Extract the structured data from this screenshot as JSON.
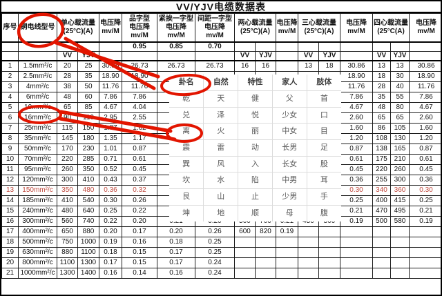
{
  "title": "VV/YJV电缆数据表",
  "colors": {
    "annotation_red": "#e21500",
    "highlight_row_red": "#c0493d",
    "table_border": "#1a1a1a"
  },
  "table": {
    "headers": {
      "seq": "序号",
      "type": "铜电线型号",
      "single": "单心载流量\n(25°C)(A)",
      "vdrop": "电压降\nmv/M",
      "trefoil": "品字型\n电压降\nmv/M",
      "flat_touching": "紧挨一字型\n电压降\nmv/M",
      "flat_spaced": "间距一字型\n电压降\nmv/M",
      "two_core": "两心载流量\n(25°C)(A)",
      "three_core": "三心载流量\n(25°C)(A)",
      "four_core": "四心载流量\n(25°C(A)",
      "vv": "VV",
      "yjv": "YJV",
      "factor_trefoil": "0.95",
      "factor_touching": "0.85",
      "factor_spaced": "0.70"
    },
    "red_row_seq": "13",
    "rows": [
      [
        "1",
        "1.5mm²/c",
        "20",
        "25",
        "30.86",
        "26.73",
        "26.73",
        "26.73",
        "16",
        "16",
        "",
        "13",
        "18",
        "30.86",
        "13",
        "13",
        "30.86"
      ],
      [
        "2",
        "2.5mm²/c",
        "28",
        "35",
        "18.90",
        "18.90",
        "",
        "",
        "",
        "",
        "",
        "",
        "",
        "18.90",
        "18",
        "30",
        "18.90"
      ],
      [
        "3",
        "4mm²/c",
        "38",
        "50",
        "11.76",
        "11.76",
        "",
        "",
        "",
        "",
        "",
        "",
        "",
        "11.76",
        "28",
        "40",
        "11.76"
      ],
      [
        "4",
        "6mm²/c",
        "48",
        "60",
        "7.86",
        "7.86",
        "",
        "",
        "",
        "",
        "",
        "",
        "",
        "7.86",
        "35",
        "55",
        "7.86"
      ],
      [
        "5",
        "10mm²/c",
        "65",
        "85",
        "4.67",
        "4.04",
        "",
        "",
        "",
        "",
        "",
        "",
        "",
        "4.67",
        "48",
        "80",
        "4.67"
      ],
      [
        "6",
        "16mm²/c",
        "90",
        "110",
        "2.95",
        "2.55",
        "",
        "",
        "",
        "",
        "",
        "",
        "",
        "2.60",
        "65",
        "65",
        "2.60"
      ],
      [
        "7",
        "25mm²/c",
        "115",
        "150",
        "1.87",
        "1.62",
        "",
        "",
        "",
        "",
        "",
        "",
        "",
        "1.60",
        "86",
        "105",
        "1.60"
      ],
      [
        "8",
        "35mm²/c",
        "145",
        "180",
        "1.35",
        "1.17",
        "",
        "",
        "",
        "",
        "",
        "",
        "",
        "1.20",
        "108",
        "130",
        "1.20"
      ],
      [
        "9",
        "50mm²/c",
        "170",
        "230",
        "1.01",
        "0.87",
        "",
        "",
        "",
        "",
        "",
        "",
        "",
        "0.87",
        "138",
        "165",
        "0.87"
      ],
      [
        "10",
        "70mm²/c",
        "220",
        "285",
        "0.71",
        "0.61",
        "",
        "",
        "",
        "",
        "",
        "",
        "",
        "0.61",
        "175",
        "210",
        "0.61"
      ],
      [
        "11",
        "95mm²/c",
        "260",
        "350",
        "0.52",
        "0.45",
        "",
        "",
        "",
        "",
        "",
        "",
        "",
        "0.45",
        "220",
        "260",
        "0.45"
      ],
      [
        "12",
        "120mm²/c",
        "300",
        "410",
        "0.43",
        "0.37",
        "",
        "",
        "",
        "",
        "",
        "",
        "",
        "0.36",
        "255",
        "300",
        "0.36"
      ],
      [
        "13",
        "150mm²/c",
        "350",
        "480",
        "0.36",
        "0.32",
        "",
        "",
        "",
        "",
        "",
        "",
        "",
        "0.30",
        "340",
        "360",
        "0.30"
      ],
      [
        "14",
        "185mm²/c",
        "410",
        "540",
        "0.30",
        "0.26",
        "",
        "",
        "",
        "",
        "",
        "",
        "",
        "0.25",
        "400",
        "415",
        "0.25"
      ],
      [
        "15",
        "240mm²/c",
        "480",
        "640",
        "0.25",
        "0.22",
        "",
        "",
        "",
        "",
        "",
        "",
        "",
        "0.21",
        "470",
        "495",
        "0.21"
      ],
      [
        "16",
        "300mm²/c",
        "560",
        "740",
        "0.22",
        "0.20",
        "0.21",
        "0.20",
        "500",
        "700",
        "0.21",
        "450",
        "500",
        "0.19",
        "500",
        "580",
        "0.19"
      ],
      [
        "17",
        "400mm²/c",
        "650",
        "880",
        "0.20",
        "0.17",
        "0.20",
        "0.26",
        "600",
        "820",
        "0.19",
        "",
        "",
        "",
        "",
        "",
        ""
      ],
      [
        "18",
        "500mm²/c",
        "750",
        "1000",
        "0.19",
        "0.16",
        "0.18",
        "0.25",
        "",
        "",
        "",
        "",
        "",
        "",
        "",
        "",
        ""
      ],
      [
        "19",
        "630mm²/c",
        "880",
        "1100",
        "0.18",
        "0.15",
        "0.17",
        "0.25",
        "",
        "",
        "",
        "",
        "",
        "",
        "",
        "",
        ""
      ],
      [
        "20",
        "800mm²/c",
        "1100",
        "1300",
        "0.17",
        "0.15",
        "0.17",
        "0.24",
        "",
        "",
        "",
        "",
        "",
        "",
        "",
        "",
        ""
      ],
      [
        "21",
        "1000mm²/c",
        "1300",
        "1400",
        "0.16",
        "0.14",
        "0.16",
        "0.24",
        "",
        "",
        "",
        "",
        "",
        "",
        "",
        "",
        ""
      ]
    ]
  },
  "overlay": {
    "headers": [
      "卦名",
      "自然",
      "特性",
      "家人",
      "肢体"
    ],
    "rows": [
      [
        "乾",
        "天",
        "健",
        "父",
        "首"
      ],
      [
        "兑",
        "泽",
        "悦",
        "少女",
        "口"
      ],
      [
        "离",
        "火",
        "丽",
        "中女",
        "目"
      ],
      [
        "震",
        "雷",
        "动",
        "长男",
        "足"
      ],
      [
        "巽",
        "风",
        "入",
        "长女",
        "股"
      ],
      [
        "坎",
        "水",
        "陷",
        "中男",
        "耳"
      ],
      [
        "艮",
        "山",
        "止",
        "少男",
        "手"
      ],
      [
        "坤",
        "地",
        "顺",
        "母",
        "腹"
      ]
    ]
  },
  "annotations": {
    "circled_items": [
      "铜电线型号",
      "卦名",
      "10mm²/c",
      "离"
    ],
    "arrows": [
      "铜电线型号 → 卦名",
      "10mm²/c → 离"
    ]
  }
}
